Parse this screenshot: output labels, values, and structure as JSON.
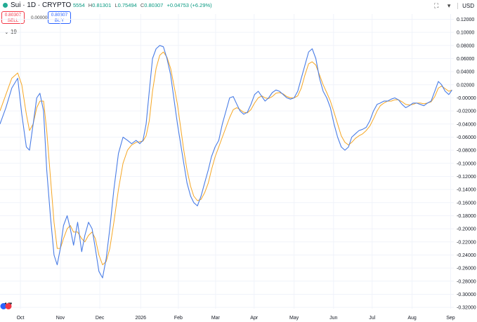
{
  "header": {
    "symbol": "Sui · 1D · CRYPTO",
    "ohlc": [
      {
        "label": "",
        "value": "5554"
      },
      {
        "label": "H",
        "value": "0.81301"
      },
      {
        "label": "L",
        "value": "0.75494"
      },
      {
        "label": "C",
        "value": "0.80307"
      },
      {
        "label": "",
        "value": "+0.04753 (+6.29%)"
      }
    ],
    "currency": "USD"
  },
  "trade": {
    "sell_price": "0.80307",
    "sell_label": "SELL",
    "spread": "0.00000",
    "buy_price": "0.80307",
    "buy_label": "BUY"
  },
  "indicator_label": "19",
  "colors": {
    "fast": "#4a7de6",
    "slow": "#f5a623",
    "up": "#089981",
    "sell": "#f23645",
    "buy": "#2962ff"
  },
  "chart_data": {
    "type": "line",
    "x_ticks": [
      "Oct",
      "Nov",
      "Dec",
      "2026",
      "Feb",
      "Mar",
      "Apr",
      "May",
      "Jun",
      "Jul",
      "Aug",
      "Sep"
    ],
    "y_ticks": [
      "0.12000",
      "0.10000",
      "0.08000",
      "0.06000",
      "0.04000",
      "0.02000",
      "-0.00000",
      "-0.02000",
      "-0.04000",
      "-0.06000",
      "-0.08000",
      "-0.10000",
      "-0.12000",
      "-0.14000",
      "-0.16000",
      "-0.18000",
      "-0.20000",
      "-0.22000",
      "-0.24000",
      "-0.26000",
      "-0.28000",
      "-0.30000",
      "-0.32000"
    ],
    "ylim": [
      -0.322,
      0.128
    ],
    "x_range": [
      0,
      100
    ],
    "x_tick_positions": [
      4.5,
      13.3,
      22,
      31,
      39.3,
      47.5,
      56,
      64.8,
      73.5,
      82,
      90.8,
      99.3
    ],
    "series": [
      {
        "key": "fast",
        "x": [
          0,
          1.3,
          2.6,
          3.9,
          4.8,
          5.8,
          6.5,
          7.3,
          8.1,
          8.8,
          9.6,
          10.3,
          11.1,
          11.9,
          12.6,
          13.3,
          14.0,
          14.8,
          15.5,
          16.2,
          17.1,
          18.0,
          18.7,
          19.5,
          20.3,
          21.0,
          21.8,
          22.6,
          23.4,
          24.2,
          25.1,
          26.1,
          27.1,
          28.1,
          29.0,
          30.0,
          30.8,
          31.5,
          32.2,
          32.9,
          33.6,
          34.4,
          35.2,
          36.0,
          36.8,
          37.6,
          38.3,
          39.1,
          39.8,
          40.5,
          41.2,
          42.0,
          42.7,
          43.5,
          44.3,
          45.1,
          45.9,
          46.6,
          47.4,
          48.2,
          49.0,
          49.8,
          50.6,
          51.4,
          52.2,
          52.9,
          53.7,
          54.5,
          55.3,
          56.1,
          56.9,
          57.7,
          58.4,
          59.2,
          60.0,
          60.8,
          61.6,
          62.4,
          63.2,
          64.0,
          64.8,
          65.6,
          66.4,
          67.2,
          68.0,
          68.8,
          69.6,
          70.4,
          71.2,
          72.0,
          72.8,
          73.6,
          74.4,
          75.2,
          76.0,
          76.8,
          77.5,
          78.3,
          79.1,
          79.9,
          80.7,
          81.5,
          82.3,
          83.1,
          83.8,
          84.6,
          85.4,
          86.2,
          87.0,
          87.8,
          88.6,
          89.4,
          90.2,
          91.0,
          91.8,
          92.6,
          93.4,
          94.2,
          95.0,
          95.8,
          96.6,
          97.3,
          98.1,
          98.9,
          99.6
        ],
        "y": [
          -0.04,
          -0.015,
          0.015,
          0.03,
          -0.025,
          -0.075,
          -0.08,
          -0.04,
          0.0,
          0.007,
          -0.02,
          -0.11,
          -0.18,
          -0.24,
          -0.255,
          -0.23,
          -0.195,
          -0.18,
          -0.2,
          -0.225,
          -0.19,
          -0.235,
          -0.21,
          -0.19,
          -0.2,
          -0.23,
          -0.265,
          -0.275,
          -0.245,
          -0.2,
          -0.14,
          -0.085,
          -0.06,
          -0.065,
          -0.07,
          -0.065,
          -0.07,
          -0.065,
          -0.04,
          0.01,
          0.06,
          0.075,
          0.08,
          0.078,
          0.06,
          0.035,
          0.0,
          -0.04,
          -0.07,
          -0.1,
          -0.13,
          -0.15,
          -0.16,
          -0.165,
          -0.15,
          -0.13,
          -0.11,
          -0.09,
          -0.075,
          -0.065,
          -0.04,
          -0.02,
          0.0,
          0.002,
          -0.01,
          -0.02,
          -0.025,
          -0.022,
          -0.01,
          0.005,
          0.01,
          0.002,
          -0.005,
          0.0,
          0.008,
          0.012,
          0.01,
          0.005,
          0.0,
          -0.002,
          0.0,
          0.01,
          0.03,
          0.05,
          0.07,
          0.075,
          0.06,
          0.03,
          0.01,
          0.0,
          -0.015,
          -0.04,
          -0.06,
          -0.075,
          -0.08,
          -0.075,
          -0.06,
          -0.055,
          -0.05,
          -0.048,
          -0.045,
          -0.035,
          -0.02,
          -0.01,
          -0.008,
          -0.005,
          -0.005,
          -0.002,
          0.0,
          -0.003,
          -0.01,
          -0.015,
          -0.012,
          -0.008,
          -0.008,
          -0.01,
          -0.012,
          -0.008,
          -0.005,
          0.01,
          0.025,
          0.02,
          0.01,
          0.005,
          0.012
        ]
      },
      {
        "key": "slow",
        "x": [
          0,
          1.3,
          2.6,
          3.9,
          4.8,
          5.8,
          6.5,
          7.3,
          8.1,
          8.8,
          9.6,
          10.3,
          11.1,
          11.9,
          12.6,
          13.3,
          14.0,
          14.8,
          15.5,
          16.2,
          17.1,
          18.0,
          18.7,
          19.5,
          20.3,
          21.0,
          21.8,
          22.6,
          23.4,
          24.2,
          25.1,
          26.1,
          27.1,
          28.1,
          29.0,
          30.0,
          30.8,
          31.5,
          32.2,
          32.9,
          33.6,
          34.4,
          35.2,
          36.0,
          36.8,
          37.6,
          38.3,
          39.1,
          39.8,
          40.5,
          41.2,
          42.0,
          42.7,
          43.5,
          44.3,
          45.1,
          45.9,
          46.6,
          47.4,
          48.2,
          49.0,
          49.8,
          50.6,
          51.4,
          52.2,
          52.9,
          53.7,
          54.5,
          55.3,
          56.1,
          56.9,
          57.7,
          58.4,
          59.2,
          60.0,
          60.8,
          61.6,
          62.4,
          63.2,
          64.0,
          64.8,
          65.6,
          66.4,
          67.2,
          68.0,
          68.8,
          69.6,
          70.4,
          71.2,
          72.0,
          72.8,
          73.6,
          74.4,
          75.2,
          76.0,
          76.8,
          77.5,
          78.3,
          79.1,
          79.9,
          80.7,
          81.5,
          82.3,
          83.1,
          83.8,
          84.6,
          85.4,
          86.2,
          87.0,
          87.8,
          88.6,
          89.4,
          90.2,
          91.0,
          91.8,
          92.6,
          93.4,
          94.2,
          95.0,
          95.8,
          96.6,
          97.3,
          98.1,
          98.9,
          99.6
        ],
        "y": [
          -0.02,
          0.005,
          0.03,
          0.038,
          0.02,
          -0.025,
          -0.05,
          -0.04,
          -0.015,
          -0.005,
          -0.005,
          -0.05,
          -0.12,
          -0.19,
          -0.23,
          -0.23,
          -0.215,
          -0.2,
          -0.195,
          -0.205,
          -0.205,
          -0.215,
          -0.22,
          -0.21,
          -0.205,
          -0.215,
          -0.24,
          -0.255,
          -0.25,
          -0.23,
          -0.19,
          -0.14,
          -0.1,
          -0.08,
          -0.072,
          -0.068,
          -0.067,
          -0.066,
          -0.058,
          -0.035,
          0.01,
          0.045,
          0.065,
          0.07,
          0.062,
          0.045,
          0.02,
          -0.01,
          -0.045,
          -0.08,
          -0.11,
          -0.135,
          -0.15,
          -0.157,
          -0.155,
          -0.145,
          -0.13,
          -0.11,
          -0.09,
          -0.075,
          -0.06,
          -0.045,
          -0.03,
          -0.018,
          -0.015,
          -0.018,
          -0.022,
          -0.023,
          -0.018,
          -0.008,
          0.0,
          0.003,
          0.0,
          -0.001,
          0.002,
          0.007,
          0.008,
          0.006,
          0.002,
          0.0,
          0.0,
          0.003,
          0.015,
          0.035,
          0.052,
          0.055,
          0.05,
          0.035,
          0.02,
          0.008,
          -0.005,
          -0.022,
          -0.04,
          -0.058,
          -0.068,
          -0.072,
          -0.068,
          -0.062,
          -0.058,
          -0.055,
          -0.05,
          -0.043,
          -0.032,
          -0.02,
          -0.012,
          -0.008,
          -0.005,
          -0.005,
          -0.003,
          -0.003,
          -0.006,
          -0.01,
          -0.011,
          -0.01,
          -0.008,
          -0.008,
          -0.009,
          -0.008,
          -0.006,
          0.002,
          0.015,
          0.018,
          0.014,
          0.01,
          0.012
        ]
      }
    ],
    "grid": true,
    "legend": "none"
  }
}
